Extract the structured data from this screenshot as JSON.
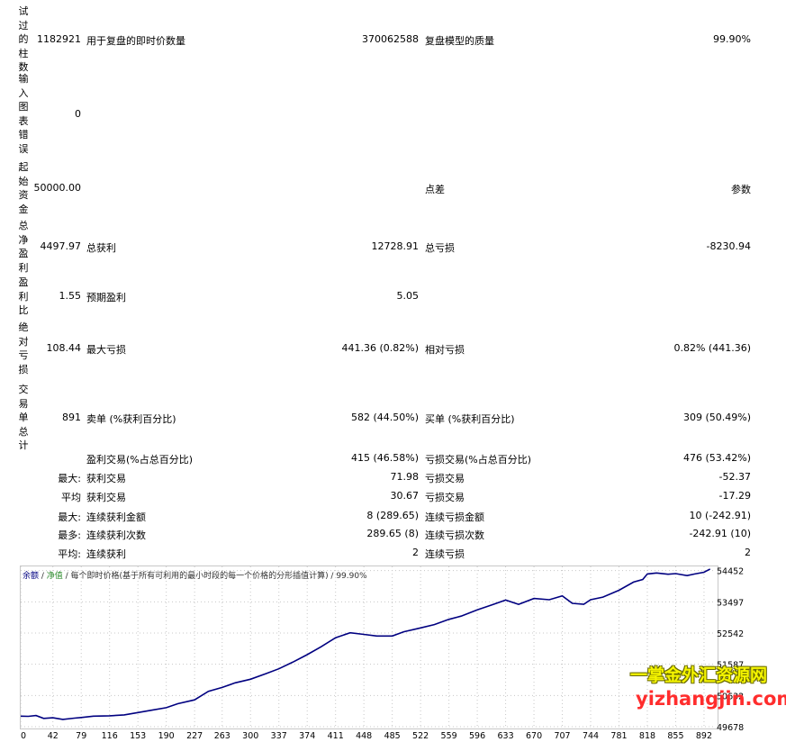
{
  "report": {
    "rows": [
      {
        "vlabel": "试过的柱数",
        "value": "1182921",
        "label1": "用于复盘的即时价数量",
        "value1": "370062588",
        "label2": "复盘模型的质量",
        "value2": "99.90%"
      },
      {
        "vlabel": "输入图表错误",
        "value": "0",
        "label1": "",
        "value1": "",
        "label2": "",
        "value2": ""
      },
      {
        "vlabel": "起始资金",
        "value": "50000.00",
        "label1": "",
        "value1": "",
        "label2": "点差",
        "value2": "参数"
      },
      {
        "vlabel": "总净盈利",
        "value": "4497.97",
        "label1": "总获利",
        "value1": "12728.91",
        "label2": "总亏损",
        "value2": "-8230.94"
      },
      {
        "vlabel": "盈利比",
        "value": "1.55",
        "label1": "预期盈利",
        "value1": "5.05",
        "label2": "",
        "value2": ""
      },
      {
        "vlabel": "绝对亏损",
        "value": "108.44",
        "label1": "最大亏损",
        "value1": "441.36 (0.82%)",
        "label2": "相对亏损",
        "value2": "0.82% (441.36)"
      },
      {
        "vlabel": "交易单总计",
        "value": "891",
        "label1": "卖单 (%获利百分比)",
        "value1": "582 (44.50%)",
        "label2": "买单 (%获利百分比)",
        "value2": "309 (50.49%)"
      }
    ],
    "detail_rows": [
      {
        "prefix": "",
        "label1": "盈利交易(%占总百分比)",
        "value1": "415 (46.58%)",
        "label2": "亏损交易(%占总百分比)",
        "value2": "476 (53.42%)"
      },
      {
        "prefix": "最大:",
        "label1": "获利交易",
        "value1": "71.98",
        "label2": "亏损交易",
        "value2": "-52.37"
      },
      {
        "prefix": "平均",
        "label1": "获利交易",
        "value1": "30.67",
        "label2": "亏损交易",
        "value2": "-17.29"
      },
      {
        "prefix": "最大:",
        "label1": "连续获利金额",
        "value1": "8 (289.65)",
        "label2": "连续亏损金额",
        "value2": "10 (-242.91)"
      },
      {
        "prefix": "最多:",
        "label1": "连续获利次数",
        "value1": "289.65 (8)",
        "label2": "连续亏损次数",
        "value2": "-242.91 (10)"
      },
      {
        "prefix": "平均:",
        "label1": "连续获利",
        "value1": "2",
        "label2": "连续亏损",
        "value2": "2"
      }
    ]
  },
  "chart_data": {
    "type": "line",
    "legend": {
      "balance": "余额",
      "sep1": " / ",
      "equity": "净值",
      "rest": " / 每个即时价格(基于所有可利用的最小时段的每一个价格的分形插值计算) / 99.90%"
    },
    "x_ticks": [
      0,
      42,
      79,
      116,
      153,
      190,
      227,
      263,
      300,
      337,
      374,
      411,
      448,
      485,
      522,
      559,
      596,
      633,
      670,
      707,
      744,
      781,
      818,
      855,
      892
    ],
    "y_ticks": [
      49678,
      50632,
      51587,
      52542,
      53497,
      54452
    ],
    "xlim": [
      0,
      905
    ],
    "ylim": [
      49678,
      54580
    ],
    "series": [
      {
        "x": [
          0,
          10,
          20,
          30,
          42,
          55,
          70,
          79,
          95,
          116,
          135,
          153,
          170,
          190,
          205,
          227,
          245,
          263,
          280,
          300,
          320,
          337,
          355,
          374,
          392,
          411,
          430,
          448,
          465,
          485,
          500,
          522,
          540,
          559,
          575,
          596,
          615,
          633,
          650,
          670,
          690,
          707,
          720,
          735,
          744,
          760,
          781,
          800,
          812,
          818,
          830,
          845,
          855,
          870,
          880,
          892,
          900
        ],
        "values": [
          50000,
          49995,
          50020,
          49930,
          49950,
          49900,
          49940,
          49960,
          50000,
          50010,
          50040,
          50110,
          50180,
          50260,
          50380,
          50500,
          50760,
          50880,
          51020,
          51130,
          51300,
          51450,
          51650,
          51880,
          52120,
          52400,
          52550,
          52500,
          52450,
          52450,
          52580,
          52700,
          52800,
          52960,
          53060,
          53250,
          53400,
          53550,
          53420,
          53600,
          53560,
          53680,
          53450,
          53420,
          53560,
          53640,
          53850,
          54100,
          54180,
          54350,
          54380,
          54340,
          54360,
          54300,
          54350,
          54400,
          54500
        ]
      }
    ]
  },
  "watermark": {
    "line1": "一掌金外汇资源网",
    "line2": "yizhangjin.com"
  }
}
